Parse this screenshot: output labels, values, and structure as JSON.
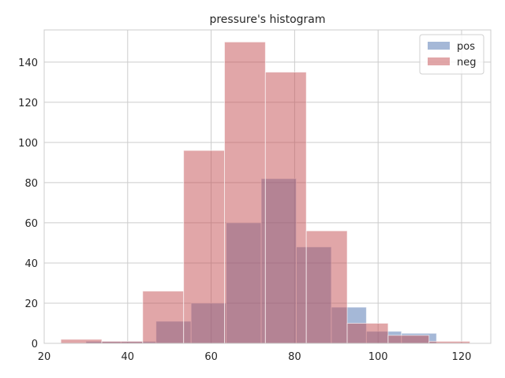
{
  "chart_data": {
    "type": "bar",
    "title": "pressure's histogram",
    "xlabel": "",
    "ylabel": "",
    "xlim": [
      20,
      127
    ],
    "ylim": [
      0,
      156
    ],
    "x_ticks": [
      20,
      40,
      60,
      80,
      100,
      120
    ],
    "y_ticks": [
      0,
      20,
      40,
      60,
      80,
      100,
      120,
      140
    ],
    "grid": true,
    "legend_position": "top-right",
    "series": [
      {
        "name": "pos",
        "color": "#4c72b0",
        "bins": [
          {
            "x0": 30.0,
            "x1": 38.4,
            "count": 1
          },
          {
            "x0": 38.4,
            "x1": 46.8,
            "count": 1
          },
          {
            "x0": 46.8,
            "x1": 55.2,
            "count": 11
          },
          {
            "x0": 55.2,
            "x1": 63.6,
            "count": 20
          },
          {
            "x0": 63.6,
            "x1": 72.0,
            "count": 60
          },
          {
            "x0": 72.0,
            "x1": 80.4,
            "count": 82
          },
          {
            "x0": 80.4,
            "x1": 88.8,
            "count": 48
          },
          {
            "x0": 88.8,
            "x1": 97.2,
            "count": 18
          },
          {
            "x0": 97.2,
            "x1": 105.6,
            "count": 6
          },
          {
            "x0": 105.6,
            "x1": 114.0,
            "count": 5
          }
        ]
      },
      {
        "name": "neg",
        "color": "#c44e52",
        "bins": [
          {
            "x0": 24.0,
            "x1": 33.8,
            "count": 2
          },
          {
            "x0": 33.8,
            "x1": 43.6,
            "count": 1
          },
          {
            "x0": 43.6,
            "x1": 53.4,
            "count": 26
          },
          {
            "x0": 53.4,
            "x1": 63.2,
            "count": 96
          },
          {
            "x0": 63.2,
            "x1": 73.0,
            "count": 150
          },
          {
            "x0": 73.0,
            "x1": 82.8,
            "count": 135
          },
          {
            "x0": 82.8,
            "x1": 92.6,
            "count": 56
          },
          {
            "x0": 92.6,
            "x1": 102.4,
            "count": 10
          },
          {
            "x0": 102.4,
            "x1": 112.2,
            "count": 4
          },
          {
            "x0": 112.2,
            "x1": 122.0,
            "count": 1
          }
        ]
      }
    ]
  }
}
